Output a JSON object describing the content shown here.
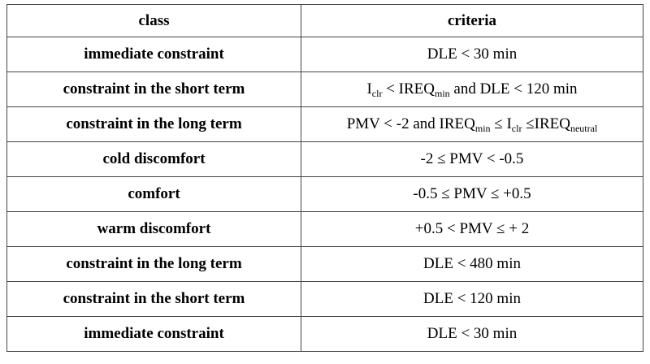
{
  "table": {
    "header": [
      "class",
      "criteria"
    ],
    "rows": [
      [
        "immediate constraint",
        "DLE < 30 min"
      ],
      [
        "constraint in the short term",
        [
          "I",
          {
            "sub": "clr"
          },
          " < IREQ",
          {
            "sub": "min"
          },
          " and DLE < 120 min"
        ]
      ],
      [
        "constraint in the long term",
        [
          "PMV < -2 and IREQ",
          {
            "sub": "min"
          },
          " ≤ I",
          {
            "sub": "clr"
          },
          " ≤IREQ",
          {
            "sub": "neutral"
          }
        ]
      ],
      [
        "cold discomfort",
        "-2 ≤ PMV < -0.5"
      ],
      [
        "comfort",
        "-0.5 ≤ PMV ≤ +0.5"
      ],
      [
        "warm discomfort",
        "+0.5 < PMV ≤ + 2"
      ],
      [
        "constraint in the long term",
        "DLE < 480 min"
      ],
      [
        "constraint in the short term",
        "DLE < 120 min"
      ],
      [
        "immediate constraint",
        "DLE < 30 min"
      ]
    ]
  }
}
